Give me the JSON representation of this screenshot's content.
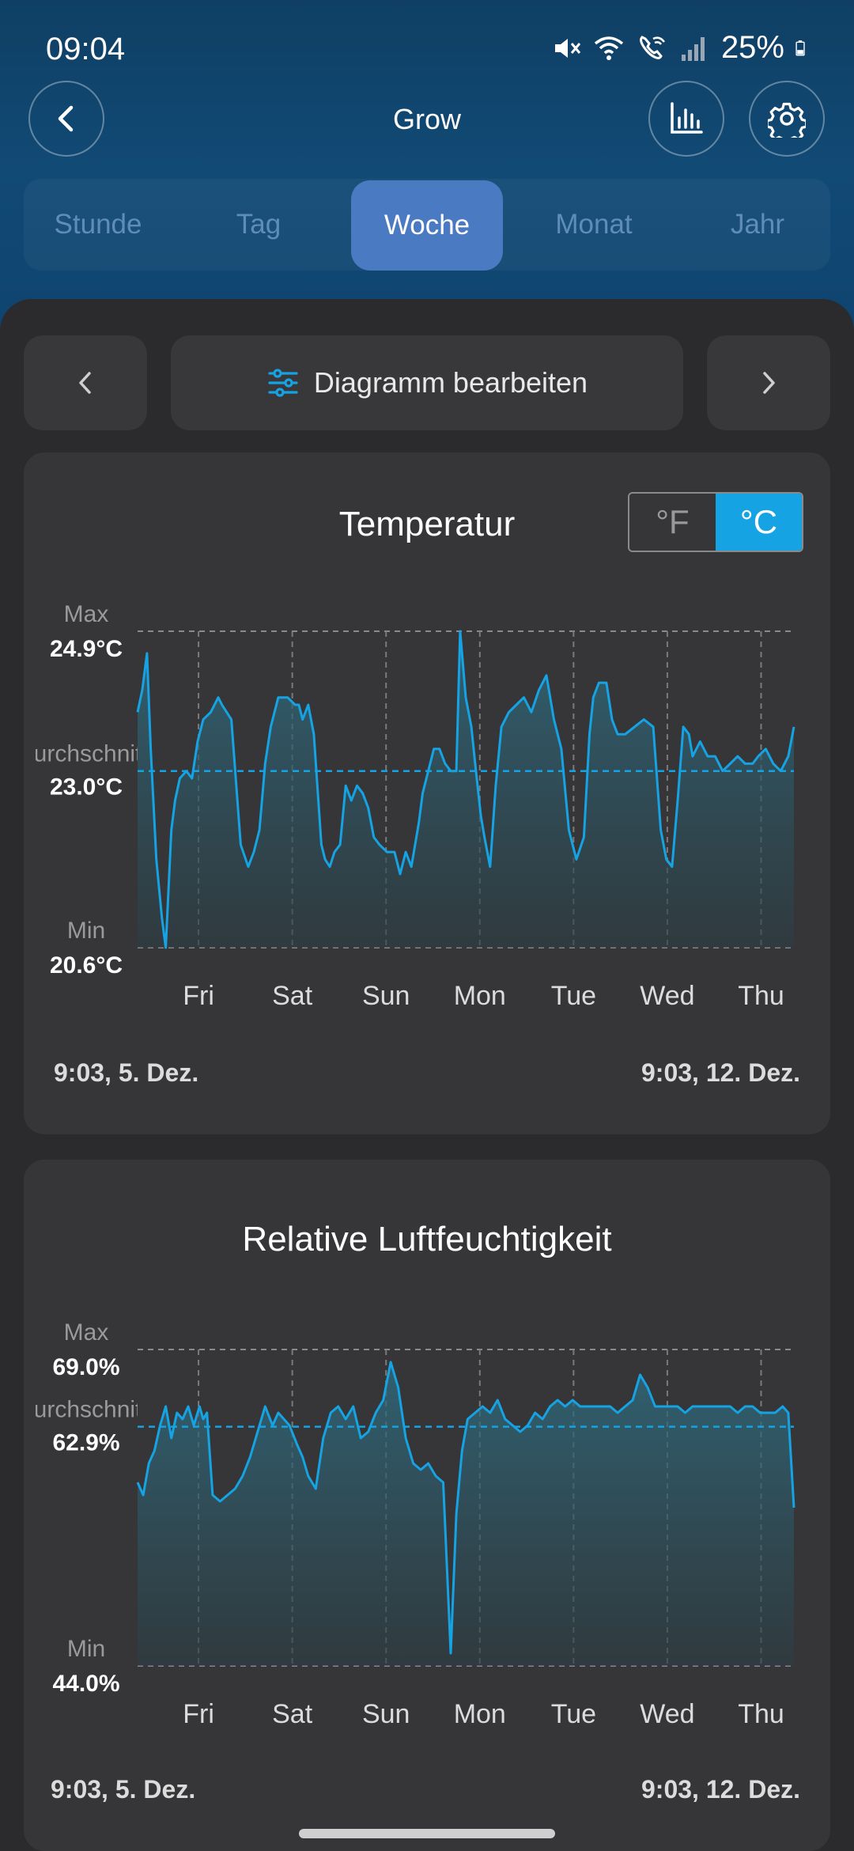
{
  "status": {
    "time": "09:04",
    "battery": "25%"
  },
  "header": {
    "title": "Grow"
  },
  "tabs": [
    {
      "label": "Stunde",
      "active": false
    },
    {
      "label": "Tag",
      "active": false
    },
    {
      "label": "Woche",
      "active": true
    },
    {
      "label": "Monat",
      "active": false
    },
    {
      "label": "Jahr",
      "active": false
    }
  ],
  "toolbar": {
    "edit_label": "Diagramm bearbeiten"
  },
  "colors": {
    "accent": "#16a3e3",
    "tab_active": "#4a7bc2",
    "header_bg": "#114a75",
    "card_bg": "#363638"
  },
  "temperature": {
    "title": "Temperatur",
    "unit_f": "°F",
    "unit_c": "°C",
    "max_label": "Max",
    "max_value": "24.9°C",
    "avg_label": "Durchschnitt",
    "avg_value": "23.0°C",
    "min_label": "Min",
    "min_value": "20.6°C",
    "days": [
      "Fri",
      "Sat",
      "Sun",
      "Mon",
      "Tue",
      "Wed",
      "Thu"
    ],
    "start": "9:03,  5. Dez.",
    "end": "9:03,  12. Dez."
  },
  "humidity": {
    "title": "Relative Luftfeuchtigkeit",
    "max_label": "Max",
    "max_value": "69.0%",
    "avg_label": "Durchschnitt",
    "avg_value": "62.9%",
    "min_label": "Min",
    "min_value": "44.0%",
    "days": [
      "Fri",
      "Sat",
      "Sun",
      "Mon",
      "Tue",
      "Wed",
      "Thu"
    ],
    "start": "9:03,  5. Dez.",
    "end": "9:03,  12. Dez."
  },
  "chart_data": [
    {
      "type": "area",
      "title": "Temperatur",
      "x_unit": "days since 5. Dez. 9:03",
      "x_range": [
        0,
        7
      ],
      "ylim": [
        20.6,
        24.9
      ],
      "average": 23.0,
      "categories": [
        "Fri",
        "Sat",
        "Sun",
        "Mon",
        "Tue",
        "Wed",
        "Thu"
      ],
      "series": [
        {
          "name": "Temperatur",
          "x": [
            0,
            0.05,
            0.1,
            0.14,
            0.2,
            0.26,
            0.3,
            0.36,
            0.4,
            0.45,
            0.52,
            0.58,
            0.64,
            0.7,
            0.78,
            0.86,
            0.9,
            1.0,
            1.1,
            1.18,
            1.24,
            1.3,
            1.36,
            1.42,
            1.5,
            1.6,
            1.68,
            1.72,
            1.76,
            1.82,
            1.88,
            1.96,
            2.0,
            2.05,
            2.1,
            2.16,
            2.22,
            2.28,
            2.34,
            2.4,
            2.46,
            2.52,
            2.58,
            2.66,
            2.74,
            2.8,
            2.86,
            2.92,
            3.0,
            3.04,
            3.1,
            3.16,
            3.22,
            3.28,
            3.34,
            3.4,
            3.44,
            3.5,
            3.56,
            3.6,
            3.66,
            3.7,
            3.76,
            3.82,
            3.88,
            3.96,
            4.04,
            4.12,
            4.2,
            4.28,
            4.36,
            4.44,
            4.52,
            4.6,
            4.68,
            4.76,
            4.82,
            4.86,
            4.92,
            5.0,
            5.06,
            5.12,
            5.2,
            5.3,
            5.4,
            5.5,
            5.58,
            5.64,
            5.7,
            5.76,
            5.82,
            5.88,
            5.92,
            6.0,
            6.08,
            6.16,
            6.24,
            6.32,
            6.4,
            6.48,
            6.56,
            6.62,
            6.7,
            6.78,
            6.86,
            6.94,
            7.0
          ],
          "values": [
            23.8,
            24.1,
            24.6,
            23.3,
            21.8,
            21.0,
            20.6,
            22.2,
            22.6,
            22.9,
            23.0,
            22.9,
            23.4,
            23.7,
            23.8,
            24.0,
            23.9,
            23.7,
            22.0,
            21.7,
            21.9,
            22.2,
            23.1,
            23.6,
            24.0,
            24.0,
            23.9,
            23.9,
            23.7,
            23.9,
            23.5,
            22.0,
            21.8,
            21.7,
            21.9,
            22.0,
            22.8,
            22.6,
            22.8,
            22.7,
            22.5,
            22.1,
            22.0,
            21.9,
            21.9,
            21.6,
            21.9,
            21.7,
            22.3,
            22.7,
            23.0,
            23.3,
            23.3,
            23.1,
            23.0,
            23.0,
            24.9,
            24.0,
            23.6,
            23.1,
            22.4,
            22.1,
            21.7,
            22.8,
            23.6,
            23.8,
            23.9,
            24.0,
            23.8,
            24.1,
            24.3,
            23.7,
            23.3,
            22.2,
            21.8,
            22.1,
            23.5,
            24.0,
            24.2,
            24.2,
            23.7,
            23.5,
            23.5,
            23.6,
            23.7,
            23.6,
            22.2,
            21.8,
            21.7,
            22.6,
            23.6,
            23.5,
            23.2,
            23.4,
            23.2,
            23.2,
            23.0,
            23.1,
            23.2,
            23.1,
            23.1,
            23.2,
            23.3,
            23.1,
            23.0,
            23.2,
            23.6
          ]
        }
      ]
    },
    {
      "type": "area",
      "title": "Relative Luftfeuchtigkeit",
      "x_unit": "days since 5. Dez. 9:03",
      "x_range": [
        0,
        7
      ],
      "ylim": [
        44.0,
        69.0
      ],
      "average": 62.9,
      "categories": [
        "Fri",
        "Sat",
        "Sun",
        "Mon",
        "Tue",
        "Wed",
        "Thu"
      ],
      "series": [
        {
          "name": "Relative Luftfeuchtigkeit",
          "x": [
            0,
            0.06,
            0.12,
            0.18,
            0.24,
            0.3,
            0.36,
            0.42,
            0.48,
            0.54,
            0.6,
            0.66,
            0.7,
            0.74,
            0.8,
            0.88,
            0.96,
            1.04,
            1.12,
            1.2,
            1.28,
            1.36,
            1.44,
            1.5,
            1.56,
            1.62,
            1.7,
            1.76,
            1.82,
            1.9,
            1.98,
            2.06,
            2.14,
            2.22,
            2.3,
            2.38,
            2.46,
            2.54,
            2.62,
            2.7,
            2.78,
            2.86,
            2.94,
            3.02,
            3.1,
            3.18,
            3.26,
            3.34,
            3.4,
            3.46,
            3.52,
            3.6,
            3.68,
            3.76,
            3.84,
            3.92,
            4.0,
            4.08,
            4.16,
            4.24,
            4.32,
            4.4,
            4.48,
            4.56,
            4.64,
            4.72,
            4.8,
            4.88,
            4.96,
            5.04,
            5.12,
            5.2,
            5.28,
            5.36,
            5.44,
            5.52,
            5.6,
            5.68,
            5.76,
            5.84,
            5.92,
            6.0,
            6.08,
            6.16,
            6.24,
            6.32,
            6.4,
            6.48,
            6.56,
            6.64,
            6.72,
            6.8,
            6.88,
            6.94,
            7.0
          ],
          "values": [
            58.5,
            57.5,
            60.0,
            61.0,
            63.0,
            64.5,
            62.0,
            64.0,
            63.5,
            64.5,
            63.0,
            64.5,
            63.5,
            64.0,
            57.5,
            57.0,
            57.5,
            58.0,
            59.0,
            60.5,
            62.5,
            64.5,
            63.0,
            64.0,
            63.5,
            63.0,
            61.5,
            60.5,
            59.0,
            58.0,
            62.0,
            64.0,
            64.5,
            63.5,
            64.5,
            62.0,
            62.5,
            64.0,
            65.0,
            68.0,
            66.0,
            62.0,
            60.0,
            59.5,
            60.0,
            59.0,
            58.5,
            45.0,
            56.0,
            61.0,
            63.5,
            64.0,
            64.5,
            64.0,
            65.0,
            63.5,
            63.0,
            62.5,
            63.0,
            64.0,
            63.5,
            64.5,
            65.0,
            64.5,
            65.0,
            64.5,
            64.5,
            64.5,
            64.5,
            64.5,
            64.0,
            64.5,
            65.0,
            67.0,
            66.0,
            64.5,
            64.5,
            64.5,
            64.5,
            64.0,
            64.5,
            64.5,
            64.5,
            64.5,
            64.5,
            64.5,
            64.0,
            64.5,
            64.5,
            64.0,
            64.0,
            64.0,
            64.5,
            64.0,
            56.5
          ]
        }
      ]
    }
  ]
}
